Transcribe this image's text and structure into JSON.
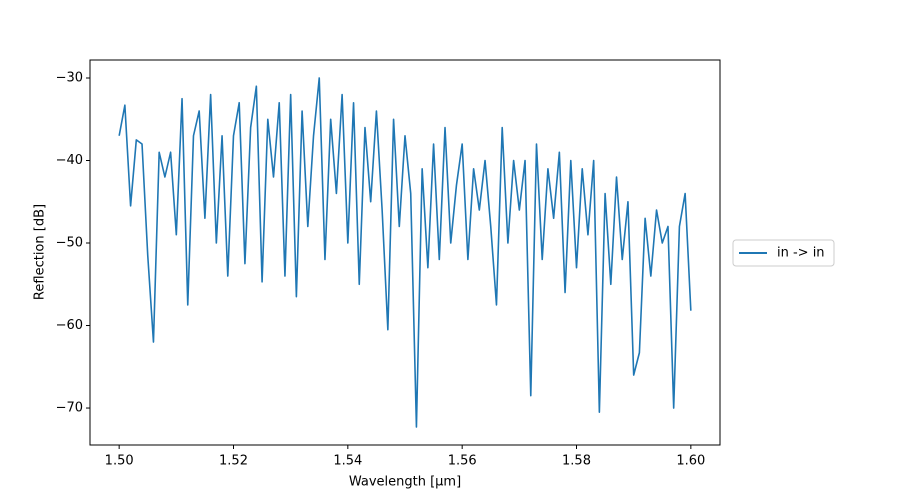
{
  "chart_data": {
    "type": "line",
    "xlabel": "Wavelength [μm]",
    "ylabel": "Reflection [dB]",
    "x": [
      1.5,
      1.501,
      1.502,
      1.503,
      1.504,
      1.505,
      1.506,
      1.507,
      1.508,
      1.509,
      1.51,
      1.511,
      1.512,
      1.513,
      1.514,
      1.515,
      1.516,
      1.517,
      1.518,
      1.519,
      1.52,
      1.521,
      1.522,
      1.523,
      1.524,
      1.525,
      1.526,
      1.527,
      1.528,
      1.529,
      1.53,
      1.531,
      1.532,
      1.533,
      1.534,
      1.535,
      1.536,
      1.537,
      1.538,
      1.539,
      1.54,
      1.541,
      1.542,
      1.543,
      1.544,
      1.545,
      1.546,
      1.547,
      1.548,
      1.549,
      1.55,
      1.551,
      1.552,
      1.553,
      1.554,
      1.555,
      1.556,
      1.557,
      1.558,
      1.559,
      1.56,
      1.561,
      1.562,
      1.563,
      1.564,
      1.565,
      1.566,
      1.567,
      1.568,
      1.569,
      1.57,
      1.571,
      1.572,
      1.573,
      1.574,
      1.575,
      1.576,
      1.577,
      1.578,
      1.579,
      1.58,
      1.581,
      1.582,
      1.583,
      1.584,
      1.585,
      1.586,
      1.587,
      1.588,
      1.589,
      1.59,
      1.591,
      1.592,
      1.593,
      1.594,
      1.595,
      1.596,
      1.597,
      1.598,
      1.599,
      1.6
    ],
    "series": [
      {
        "name": "in -> in",
        "color": "#1f77b4",
        "values": [
          -37,
          -33.3,
          -45.5,
          -37.5,
          -38,
          -51.5,
          -62,
          -39,
          -42,
          -39,
          -49,
          -32.5,
          -57.5,
          -37,
          -34,
          -47,
          -32,
          -50,
          -37,
          -54,
          -37,
          -33,
          -52.5,
          -36,
          -31,
          -54.7,
          -35,
          -42,
          -33,
          -54,
          -32,
          -56.5,
          -34,
          -48,
          -37,
          -30,
          -52,
          -35,
          -44,
          -32,
          -50,
          -33,
          -55,
          -36,
          -45,
          -34,
          -46,
          -60.5,
          -35,
          -48,
          -37,
          -44,
          -72.3,
          -41,
          -53,
          -38,
          -52,
          -36,
          -50,
          -43,
          -38,
          -52,
          -41,
          -46,
          -40,
          -48,
          -57.5,
          -36,
          -50,
          -40,
          -46,
          -40,
          -68.5,
          -38,
          -52,
          -41,
          -47,
          -39,
          -56,
          -40,
          -53,
          -41,
          -49,
          -40,
          -70.5,
          -44,
          -55,
          -42,
          -52,
          -45,
          -66,
          -63.3,
          -47,
          -54,
          -46,
          -50,
          -48,
          -70,
          -48,
          -44,
          -58.2
        ]
      }
    ],
    "xlim": [
      1.4949,
      1.6051
    ],
    "ylim": [
      -74.48,
      -27.82
    ],
    "xticks": [
      {
        "value": 1.5,
        "label": "1.50"
      },
      {
        "value": 1.52,
        "label": "1.52"
      },
      {
        "value": 1.54,
        "label": "1.54"
      },
      {
        "value": 1.56,
        "label": "1.56"
      },
      {
        "value": 1.58,
        "label": "1.58"
      },
      {
        "value": 1.6,
        "label": "1.60"
      }
    ],
    "yticks": [
      {
        "value": -70,
        "label": "−70"
      },
      {
        "value": -60,
        "label": "−60"
      },
      {
        "value": -50,
        "label": "−50"
      },
      {
        "value": -40,
        "label": "−40"
      },
      {
        "value": -30,
        "label": "−30"
      }
    ],
    "grid": false,
    "legend": "outside right"
  }
}
